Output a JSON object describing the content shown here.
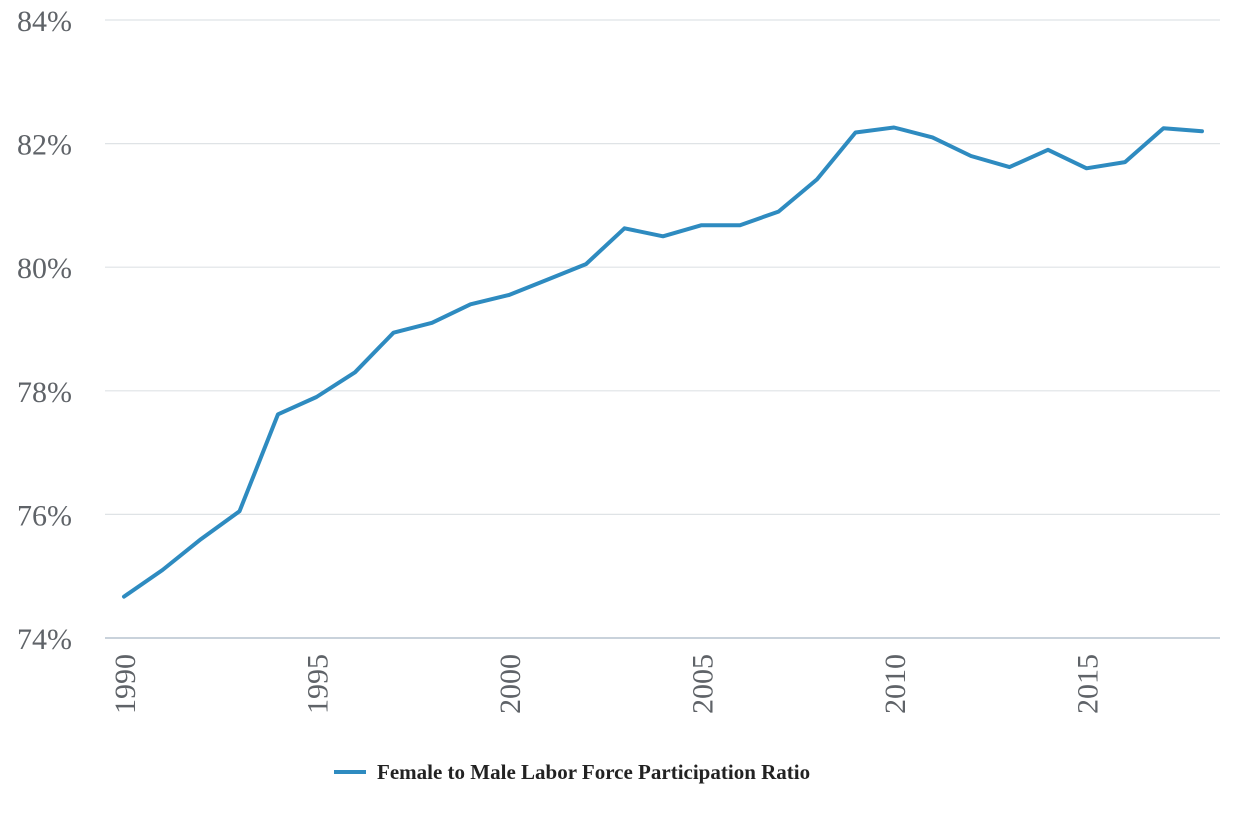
{
  "chart_data": {
    "type": "line",
    "title": "",
    "xlabel": "",
    "ylabel": "",
    "x": [
      1990,
      1991,
      1992,
      1993,
      1994,
      1995,
      1996,
      1997,
      1998,
      1999,
      2000,
      2001,
      2002,
      2003,
      2004,
      2005,
      2006,
      2007,
      2008,
      2009,
      2010,
      2011,
      2012,
      2013,
      2014,
      2015,
      2016,
      2017,
      2018
    ],
    "series": [
      {
        "name": "Female to Male Labor Force Participation Ratio",
        "color": "#2e8bc0",
        "values": [
          74.67,
          75.1,
          75.6,
          76.05,
          77.62,
          77.9,
          78.3,
          78.94,
          79.1,
          79.4,
          79.55,
          79.8,
          80.05,
          80.63,
          80.5,
          80.68,
          80.68,
          80.9,
          81.42,
          82.18,
          82.26,
          82.1,
          81.8,
          81.62,
          81.9,
          81.6,
          81.7,
          82.25,
          82.2
        ]
      }
    ],
    "xlim": [
      1990,
      2018
    ],
    "ylim": [
      74,
      84
    ],
    "x_ticks": [
      1990,
      1995,
      2000,
      2005,
      2010,
      2015
    ],
    "x_tick_labels": [
      "1990",
      "1995",
      "2000",
      "2005",
      "2010",
      "2015"
    ],
    "y_ticks": [
      74,
      76,
      78,
      80,
      82,
      84
    ],
    "y_tick_labels": [
      "74%",
      "76%",
      "78%",
      "80%",
      "82%",
      "84%"
    ],
    "grid": true,
    "legend_position": "bottom-center",
    "gridline_color": "#dfe3e6",
    "axis_color": "#b7c4cf"
  }
}
